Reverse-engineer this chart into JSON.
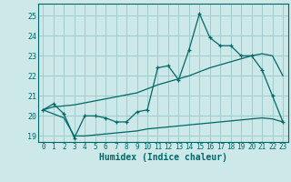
{
  "xlabel": "Humidex (Indice chaleur)",
  "bg_color": "#cce8e8",
  "grid_color": "#a0cccc",
  "line_color": "#006868",
  "xlim": [
    -0.5,
    23.5
  ],
  "ylim": [
    18.7,
    25.6
  ],
  "xticks": [
    0,
    1,
    2,
    3,
    4,
    5,
    6,
    7,
    8,
    9,
    10,
    11,
    12,
    13,
    14,
    15,
    16,
    17,
    18,
    19,
    20,
    21,
    22,
    23
  ],
  "yticks": [
    19,
    20,
    21,
    22,
    23,
    24,
    25
  ],
  "main_line_x": [
    0,
    1,
    2,
    3,
    4,
    5,
    6,
    7,
    8,
    9,
    10,
    11,
    12,
    13,
    14,
    15,
    16,
    17,
    18,
    19,
    20,
    21,
    22,
    23
  ],
  "main_line_y": [
    20.3,
    20.6,
    20.1,
    18.9,
    20.0,
    20.0,
    19.9,
    19.7,
    19.7,
    20.2,
    20.3,
    22.4,
    22.5,
    21.8,
    23.3,
    25.1,
    23.9,
    23.5,
    23.5,
    23.0,
    23.0,
    22.3,
    21.0,
    19.7
  ],
  "upper_line_x": [
    0,
    1,
    2,
    3,
    4,
    5,
    6,
    7,
    8,
    9,
    10,
    11,
    12,
    13,
    14,
    15,
    16,
    17,
    18,
    19,
    20,
    21,
    22,
    23
  ],
  "upper_line_y": [
    20.3,
    20.45,
    20.5,
    20.55,
    20.65,
    20.75,
    20.85,
    20.95,
    21.05,
    21.15,
    21.35,
    21.55,
    21.7,
    21.85,
    22.0,
    22.2,
    22.4,
    22.55,
    22.7,
    22.85,
    23.0,
    23.1,
    23.0,
    22.0
  ],
  "lower_line_x": [
    0,
    1,
    2,
    3,
    4,
    5,
    6,
    7,
    8,
    9,
    10,
    11,
    12,
    13,
    14,
    15,
    16,
    17,
    18,
    19,
    20,
    21,
    22,
    23
  ],
  "lower_line_y": [
    20.3,
    20.1,
    19.9,
    19.0,
    19.0,
    19.05,
    19.1,
    19.15,
    19.2,
    19.25,
    19.35,
    19.4,
    19.45,
    19.5,
    19.55,
    19.6,
    19.65,
    19.7,
    19.75,
    19.8,
    19.85,
    19.9,
    19.85,
    19.7
  ]
}
